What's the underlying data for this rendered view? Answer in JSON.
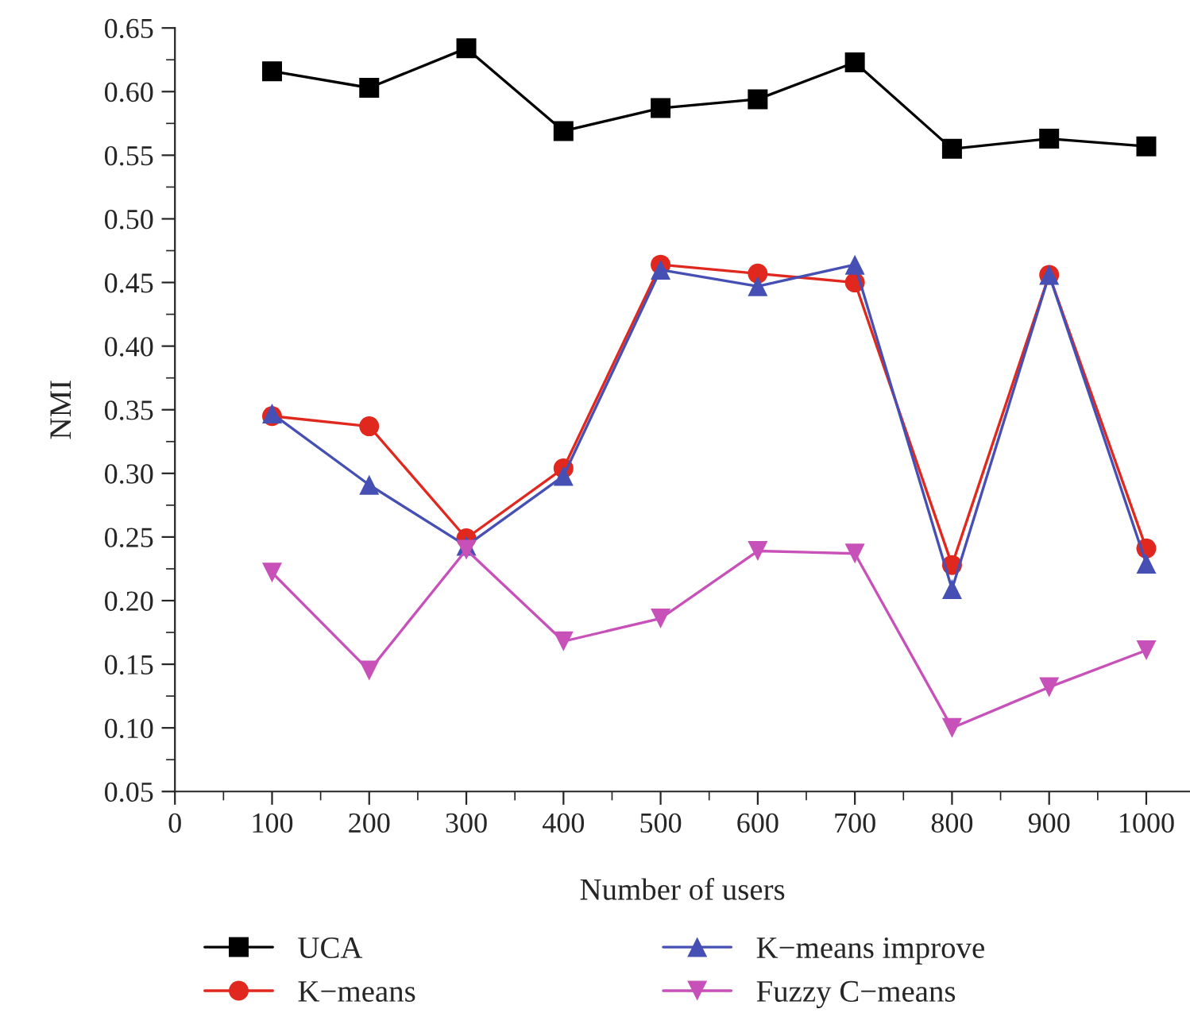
{
  "chart_data": {
    "type": "line",
    "xlabel": "Number of users",
    "ylabel": "NMI",
    "x": [
      100,
      200,
      300,
      400,
      500,
      600,
      700,
      800,
      900,
      1000
    ],
    "series": [
      {
        "name": "UCA",
        "color": "#000000",
        "marker": "square",
        "values": [
          0.616,
          0.603,
          0.634,
          0.569,
          0.587,
          0.594,
          0.623,
          0.555,
          0.563,
          0.557
        ]
      },
      {
        "name": "K−means",
        "color": "#e0281e",
        "marker": "circle",
        "values": [
          0.345,
          0.337,
          0.249,
          0.304,
          0.464,
          0.457,
          0.45,
          0.228,
          0.456,
          0.241
        ]
      },
      {
        "name": "K−means improve",
        "color": "#4650b4",
        "marker": "triangle",
        "values": [
          0.347,
          0.291,
          0.243,
          0.298,
          0.46,
          0.447,
          0.464,
          0.209,
          0.456,
          0.229
        ]
      },
      {
        "name": "Fuzzy C−means",
        "color": "#c850b9",
        "marker": "triangle_down",
        "values": [
          0.222,
          0.145,
          0.24,
          0.168,
          0.186,
          0.239,
          0.237,
          0.1,
          0.132,
          0.161
        ]
      }
    ],
    "xlim": [
      0,
      1045
    ],
    "xticks": [
      0,
      100,
      200,
      300,
      400,
      500,
      600,
      700,
      800,
      900,
      1000
    ],
    "ylim": [
      0.05,
      0.65
    ],
    "yticks": [
      {
        "value": 0.05,
        "label": "0.05"
      },
      {
        "value": 0.1,
        "label": "0.10"
      },
      {
        "value": 0.15,
        "label": "0.15"
      },
      {
        "value": 0.2,
        "label": "0.20"
      },
      {
        "value": 0.25,
        "label": "0.25"
      },
      {
        "value": 0.3,
        "label": "0.30"
      },
      {
        "value": 0.35,
        "label": "0.35"
      },
      {
        "value": 0.4,
        "label": "0.40"
      },
      {
        "value": 0.45,
        "label": "0.45"
      },
      {
        "value": 0.5,
        "label": "0.50"
      },
      {
        "value": 0.55,
        "label": "0.55"
      },
      {
        "value": 0.6,
        "label": "0.60"
      },
      {
        "value": 0.65,
        "label": "0.65"
      }
    ],
    "grid": false,
    "legend": "bottom"
  }
}
